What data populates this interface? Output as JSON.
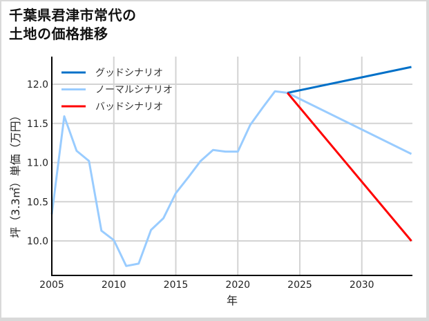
{
  "title": {
    "line1": "千葉県君津市常代の",
    "line2": "土地の価格推移"
  },
  "chart_data": {
    "type": "line",
    "title": "千葉県君津市常代の土地の価格推移",
    "xlabel": "年",
    "ylabel": "坪（3.3㎡）単価（万円）",
    "xlim": [
      2005,
      2034
    ],
    "ylim": [
      9.55,
      12.35
    ],
    "grid": true,
    "legend_position": "upper left",
    "x_ticks": [
      2005,
      2010,
      2015,
      2020,
      2025,
      2030
    ],
    "y_ticks": [
      10.0,
      10.5,
      11.0,
      11.5,
      12.0
    ],
    "x_tick_labels": [
      "2005",
      "2010",
      "2015",
      "2020",
      "2025",
      "2030"
    ],
    "y_tick_labels": [
      "10.0",
      "10.5",
      "11.0",
      "11.5",
      "12.0"
    ],
    "series": [
      {
        "name": "グッドシナリオ",
        "color": "#0070c8",
        "x": [
          2024,
          2034
        ],
        "values": [
          11.89,
          12.22
        ]
      },
      {
        "name": "ノーマルシナリオ",
        "color": "#99ccff",
        "x": [
          2005,
          2006,
          2007,
          2008,
          2009,
          2010,
          2011,
          2012,
          2013,
          2014,
          2015,
          2016,
          2017,
          2018,
          2019,
          2020,
          2021,
          2022,
          2023,
          2024,
          2034
        ],
        "values": [
          10.34,
          11.59,
          11.15,
          11.02,
          10.13,
          10.01,
          9.68,
          9.71,
          10.14,
          10.29,
          10.61,
          10.81,
          11.02,
          11.16,
          11.14,
          11.14,
          11.48,
          11.7,
          11.91,
          11.89,
          11.11
        ]
      },
      {
        "name": "バッドシナリオ",
        "color": "#ff0000",
        "x": [
          2024,
          2034
        ],
        "values": [
          11.89,
          10.0
        ]
      }
    ]
  }
}
